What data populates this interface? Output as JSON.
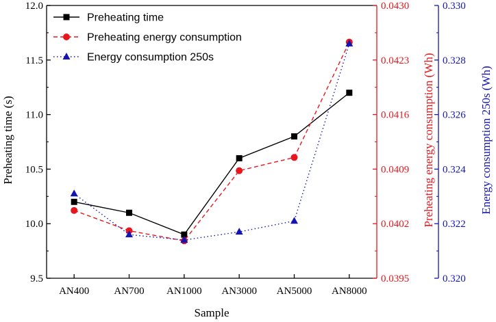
{
  "chart_data": {
    "type": "line",
    "xlabel": "Sample",
    "categories": [
      "AN400",
      "AN700",
      "AN1000",
      "AN3000",
      "AN5000",
      "AN8000"
    ],
    "axes": {
      "left": {
        "label": "Preheating time (s)",
        "ylim": [
          9.5,
          12.0
        ],
        "ticks": [
          "9.5",
          "10.0",
          "10.5",
          "11.0",
          "11.5",
          "12.0"
        ],
        "color": "#000000"
      },
      "right1": {
        "label": "Preheating energy consumption (Wh)",
        "ylim": [
          0.0395,
          0.043
        ],
        "ticks": [
          "0.0395",
          "0.0402",
          "0.0409",
          "0.0416",
          "0.0423",
          "0.0430"
        ],
        "color": "#e8171d"
      },
      "right2": {
        "label": "Energy consumption 250s (Wh)",
        "ylim": [
          0.32,
          0.33
        ],
        "ticks": [
          "0.320",
          "0.322",
          "0.324",
          "0.326",
          "0.328",
          "0.330"
        ],
        "color": "#1414b4"
      }
    },
    "series": [
      {
        "name": "Preheating time",
        "axis": "left",
        "values": [
          10.2,
          10.1,
          9.9,
          10.6,
          10.8,
          11.2
        ],
        "color": "#000000",
        "line": "solid",
        "marker": "square"
      },
      {
        "name": "Preheating energy consumption",
        "axis": "right1",
        "values": [
          0.04037,
          0.04011,
          0.03998,
          0.04088,
          0.04105,
          0.04253
        ],
        "color": "#e8171d",
        "line": "dashed",
        "marker": "circle"
      },
      {
        "name": "Energy consumption 250s",
        "axis": "right2",
        "values": [
          0.3231,
          0.3216,
          0.3214,
          0.3217,
          0.3221,
          0.3286
        ],
        "color": "#1414b4",
        "line": "dotted",
        "marker": "triangle"
      }
    ],
    "legend_position": "top-left"
  }
}
